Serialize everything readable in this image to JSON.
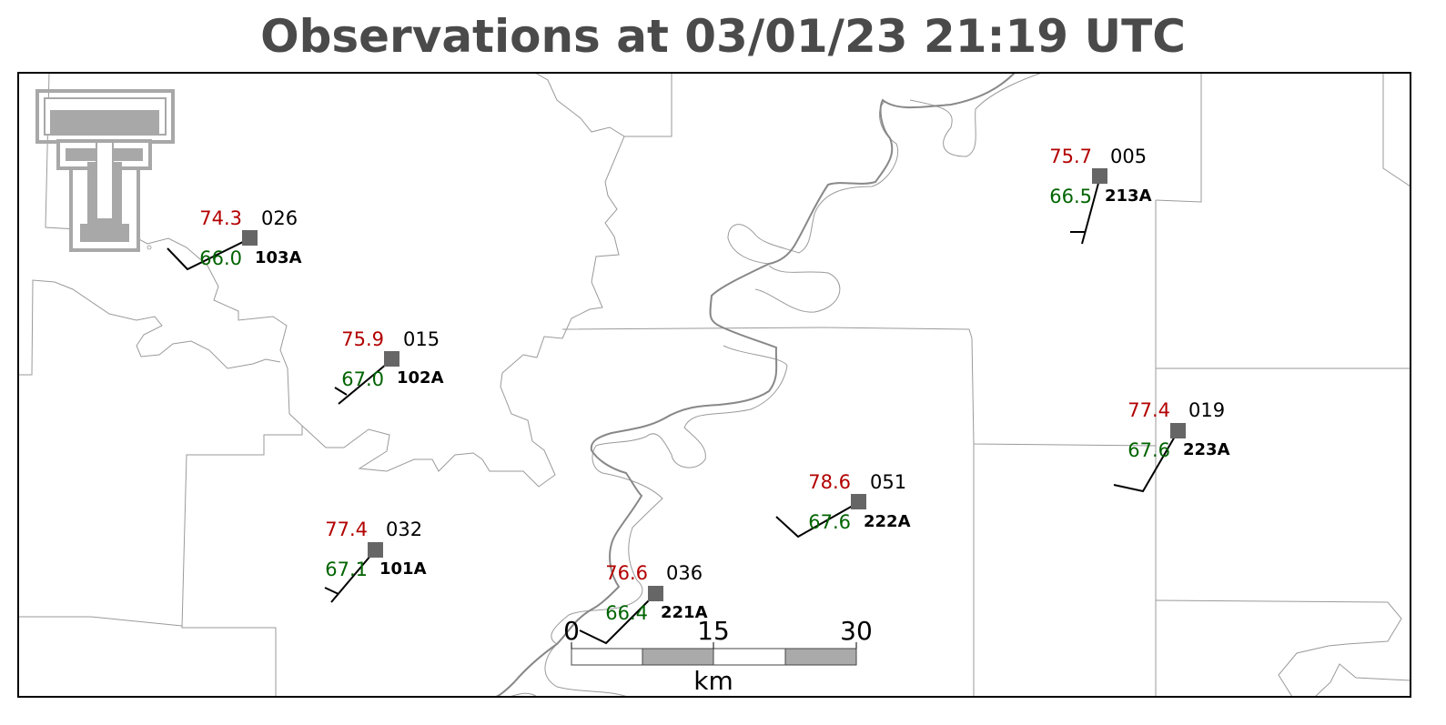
{
  "title": "Observations at 03/01/23 21:19 UTC",
  "colors": {
    "title": "#4a4a4a",
    "temperature": "#b30000",
    "dewpoint": "#006400",
    "station_marker": "#666666",
    "river": "#888888",
    "boundary": "#999999",
    "logo": "#a8a8a8"
  },
  "logo": {
    "icon": "double-t-logo-icon"
  },
  "stations": [
    {
      "id": "103A",
      "temperature": "74.3",
      "dewpoint": "66.0",
      "pressure": "026"
    },
    {
      "id": "102A",
      "temperature": "75.9",
      "dewpoint": "67.0",
      "pressure": "015"
    },
    {
      "id": "101A",
      "temperature": "77.4",
      "dewpoint": "67.1",
      "pressure": "032"
    },
    {
      "id": "221A",
      "temperature": "76.6",
      "dewpoint": "66.4",
      "pressure": "036"
    },
    {
      "id": "222A",
      "temperature": "78.6",
      "dewpoint": "67.6",
      "pressure": "051"
    },
    {
      "id": "213A",
      "temperature": "75.7",
      "dewpoint": "66.5",
      "pressure": "005"
    },
    {
      "id": "223A",
      "temperature": "77.4",
      "dewpoint": "67.6",
      "pressure": "019"
    }
  ],
  "scale_bar": {
    "ticks": [
      "0",
      "15",
      "30"
    ],
    "unit": "km"
  }
}
